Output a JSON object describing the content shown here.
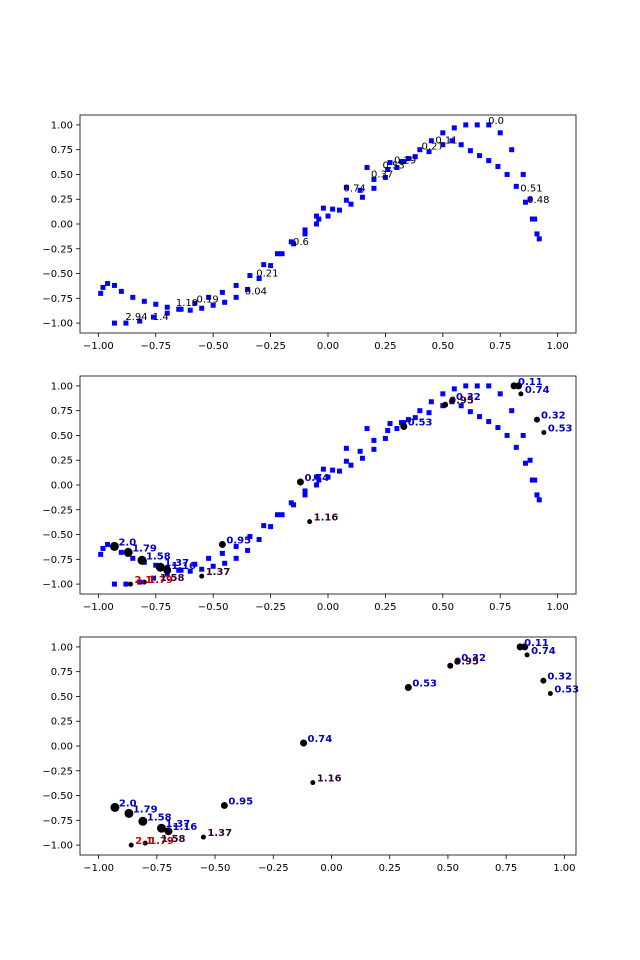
{
  "chart_data": [
    {
      "type": "scatter",
      "title": "",
      "xlabel": "",
      "ylabel": "",
      "xlim": [
        -1.08,
        1.08
      ],
      "ylim": [
        -1.1,
        1.1
      ],
      "xticks": [
        "−1.00",
        "−0.75",
        "−0.50",
        "−0.25",
        "0.00",
        "0.25",
        "0.50",
        "0.75",
        "1.00"
      ],
      "xtick_values": [
        -1.0,
        -0.75,
        -0.5,
        -0.25,
        0.0,
        0.25,
        0.5,
        0.75,
        1.0
      ],
      "yticks": [
        "−1.00",
        "−0.75",
        "−0.50",
        "−0.25",
        "0.00",
        "0.25",
        "0.50",
        "0.75",
        "1.00"
      ],
      "ytick_values": [
        -1.0,
        -0.75,
        -0.5,
        -0.25,
        0.0,
        0.25,
        0.5,
        0.75,
        1.0
      ],
      "grid": false,
      "series": [
        {
          "color": "#0000ff",
          "marker": "square",
          "x": [
            -0.99,
            -0.98,
            -0.96,
            -0.93,
            -0.9,
            -0.85,
            -0.8,
            -0.75,
            -0.7,
            -0.65,
            -0.6,
            -0.55,
            -0.5,
            -0.45,
            -0.4,
            -0.35,
            -0.3,
            -0.25,
            -0.2,
            -0.15,
            -0.1,
            -0.05,
            0.0,
            0.05,
            0.1,
            0.15,
            0.2,
            0.25,
            0.3,
            0.35,
            0.4,
            0.45,
            0.5,
            0.55,
            0.6,
            0.65,
            0.7,
            0.75,
            0.8,
            0.85,
            0.88,
            0.9,
            0.92,
            -0.93,
            -0.88,
            -0.82,
            -0.76,
            -0.7,
            -0.64,
            -0.58,
            -0.52,
            -0.46,
            -0.4,
            -0.34,
            -0.28,
            -0.22,
            -0.16,
            -0.1,
            -0.04,
            0.02,
            0.08,
            0.14,
            0.2,
            0.26,
            0.32,
            0.38,
            0.44,
            0.5,
            0.54,
            0.58,
            0.62,
            0.66,
            0.7,
            0.74,
            0.78,
            0.82,
            0.86,
            0.89,
            0.91,
            -0.05,
            -0.02,
            0.08,
            0.17,
            0.27,
            0.33
          ],
          "y": [
            -0.7,
            -0.64,
            -0.6,
            -0.62,
            -0.68,
            -0.74,
            -0.78,
            -0.81,
            -0.84,
            -0.86,
            -0.87,
            -0.85,
            -0.82,
            -0.79,
            -0.74,
            -0.66,
            -0.55,
            -0.42,
            -0.3,
            -0.2,
            -0.1,
            0.0,
            0.08,
            0.14,
            0.2,
            0.27,
            0.36,
            0.47,
            0.57,
            0.66,
            0.75,
            0.84,
            0.92,
            0.97,
            1.0,
            1.0,
            1.0,
            0.92,
            0.75,
            0.5,
            0.25,
            0.05,
            -0.15,
            -1.0,
            -1.0,
            -0.98,
            -0.94,
            -0.9,
            -0.86,
            -0.8,
            -0.74,
            -0.69,
            -0.62,
            -0.52,
            -0.41,
            -0.3,
            -0.18,
            -0.06,
            0.05,
            0.15,
            0.24,
            0.34,
            0.45,
            0.55,
            0.63,
            0.68,
            0.73,
            0.8,
            0.84,
            0.8,
            0.74,
            0.69,
            0.64,
            0.58,
            0.5,
            0.38,
            0.22,
            0.05,
            -0.1,
            0.08,
            0.16,
            0.37,
            0.57,
            0.62,
            0.63
          ]
        }
      ],
      "annotations": [
        {
          "text": "0.0",
          "x": 0.68,
          "y": 1.0,
          "color": "#000000"
        },
        {
          "text": "0.11",
          "x": 0.45,
          "y": 0.8,
          "color": "#000000"
        },
        {
          "text": "0.27",
          "x": 0.39,
          "y": 0.74,
          "color": "#000000"
        },
        {
          "text": "0.53",
          "x": 0.22,
          "y": 0.55,
          "color": "#000000"
        },
        {
          "text": "0.29",
          "x": 0.27,
          "y": 0.6,
          "color": "#000000"
        },
        {
          "text": "0.37",
          "x": 0.17,
          "y": 0.46,
          "color": "#000000"
        },
        {
          "text": "0.74",
          "x": 0.05,
          "y": 0.32,
          "color": "#000000"
        },
        {
          "text": "0.51",
          "x": 0.82,
          "y": 0.32,
          "color": "#000000"
        },
        {
          "text": "0.48",
          "x": 0.85,
          "y": 0.2,
          "color": "#000000"
        },
        {
          "text": "0.6",
          "x": -0.17,
          "y": -0.22,
          "color": "#000000"
        },
        {
          "text": "0.21",
          "x": -0.33,
          "y": -0.54,
          "color": "#000000"
        },
        {
          "text": "0.04",
          "x": -0.38,
          "y": -0.72,
          "color": "#000000"
        },
        {
          "text": "0.19",
          "x": -0.59,
          "y": -0.8,
          "color": "#000000"
        },
        {
          "text": "1.19",
          "x": -0.68,
          "y": -0.84,
          "color": "#000000"
        },
        {
          "text": "1.4",
          "x": -0.78,
          "y": -0.98,
          "color": "#000000"
        },
        {
          "text": "2.94",
          "x": -0.9,
          "y": -0.98,
          "color": "#000000"
        }
      ]
    },
    {
      "type": "scatter",
      "title": "",
      "xlabel": "",
      "ylabel": "",
      "xlim": [
        -1.08,
        1.08
      ],
      "ylim": [
        -1.1,
        1.1
      ],
      "xticks": [
        "−1.00",
        "−0.75",
        "−0.50",
        "−0.25",
        "0.00",
        "0.25",
        "0.50",
        "0.75",
        "1.00"
      ],
      "xtick_values": [
        -1.0,
        -0.75,
        -0.5,
        -0.25,
        0.0,
        0.25,
        0.5,
        0.75,
        1.0
      ],
      "yticks": [
        "−1.00",
        "−0.75",
        "−0.50",
        "−0.25",
        "0.00",
        "0.25",
        "0.50",
        "0.75",
        "1.00"
      ],
      "ytick_values": [
        -1.0,
        -0.75,
        -0.5,
        -0.25,
        0.0,
        0.25,
        0.5,
        0.75,
        1.0
      ],
      "grid": false,
      "series": [
        {
          "color": "#0000ff",
          "marker": "square",
          "x": [
            -0.99,
            -0.98,
            -0.96,
            -0.93,
            -0.9,
            -0.85,
            -0.8,
            -0.75,
            -0.7,
            -0.65,
            -0.6,
            -0.55,
            -0.5,
            -0.45,
            -0.4,
            -0.35,
            -0.3,
            -0.25,
            -0.2,
            -0.15,
            -0.1,
            -0.05,
            0.0,
            0.05,
            0.1,
            0.15,
            0.2,
            0.25,
            0.3,
            0.35,
            0.4,
            0.45,
            0.5,
            0.55,
            0.6,
            0.65,
            0.7,
            0.75,
            0.8,
            0.85,
            0.88,
            0.9,
            0.92,
            -0.93,
            -0.88,
            -0.82,
            -0.76,
            -0.7,
            -0.64,
            -0.58,
            -0.52,
            -0.46,
            -0.4,
            -0.34,
            -0.28,
            -0.22,
            -0.16,
            -0.1,
            -0.04,
            0.02,
            0.08,
            0.14,
            0.2,
            0.26,
            0.32,
            0.38,
            0.44,
            0.5,
            0.54,
            0.58,
            0.62,
            0.66,
            0.7,
            0.74,
            0.78,
            0.82,
            0.86,
            0.89,
            0.91,
            -0.05,
            -0.02,
            0.08,
            0.17,
            0.27,
            0.33
          ],
          "y": [
            -0.7,
            -0.64,
            -0.6,
            -0.62,
            -0.68,
            -0.74,
            -0.78,
            -0.81,
            -0.84,
            -0.86,
            -0.87,
            -0.85,
            -0.82,
            -0.79,
            -0.74,
            -0.66,
            -0.55,
            -0.42,
            -0.3,
            -0.2,
            -0.1,
            0.0,
            0.08,
            0.14,
            0.2,
            0.27,
            0.36,
            0.47,
            0.57,
            0.66,
            0.75,
            0.84,
            0.92,
            0.97,
            1.0,
            1.0,
            1.0,
            0.92,
            0.75,
            0.5,
            0.25,
            0.05,
            -0.15,
            -1.0,
            -1.0,
            -0.98,
            -0.94,
            -0.9,
            -0.86,
            -0.8,
            -0.74,
            -0.69,
            -0.62,
            -0.52,
            -0.41,
            -0.3,
            -0.18,
            -0.06,
            0.05,
            0.15,
            0.24,
            0.34,
            0.45,
            0.55,
            0.63,
            0.68,
            0.73,
            0.8,
            0.84,
            0.8,
            0.74,
            0.69,
            0.64,
            0.58,
            0.5,
            0.38,
            0.22,
            0.05,
            -0.1,
            0.08,
            0.16,
            0.37,
            0.57,
            0.62,
            0.63
          ]
        },
        {
          "color": "#000000",
          "marker": "circle",
          "x": [
            0.81,
            0.83,
            0.84,
            0.91,
            0.94,
            0.54,
            0.51,
            0.33,
            -0.12,
            -0.08,
            -0.46,
            -0.93,
            -0.87,
            -0.81,
            -0.73,
            -0.7,
            -0.55,
            -0.8,
            -0.86
          ],
          "y": [
            1.0,
            1.0,
            0.92,
            0.66,
            0.53,
            0.85,
            0.81,
            0.59,
            0.03,
            -0.37,
            -0.6,
            -0.62,
            -0.68,
            -0.76,
            -0.83,
            -0.86,
            -0.92,
            -0.98,
            -1.0
          ],
          "sizes": [
            7,
            7,
            5,
            6,
            5,
            6,
            6,
            7,
            7,
            5,
            7,
            9,
            9,
            9,
            9,
            8,
            5,
            5,
            5
          ]
        }
      ],
      "annotations": [
        {
          "text": "0.11",
          "x": 0.81,
          "y": 1.0,
          "color": "#0000c8"
        },
        {
          "text": "0.74",
          "x": 0.84,
          "y": 0.92,
          "color": "#0000c8"
        },
        {
          "text": "0.32",
          "x": 0.91,
          "y": 0.66,
          "color": "#0000c8"
        },
        {
          "text": "0.53",
          "x": 0.94,
          "y": 0.53,
          "color": "#0000c8"
        },
        {
          "text": "0.32",
          "x": 0.54,
          "y": 0.85,
          "color": "#0000c8"
        },
        {
          "text": "0.95",
          "x": 0.51,
          "y": 0.81,
          "color": "#330033"
        },
        {
          "text": "0.53",
          "x": 0.33,
          "y": 0.59,
          "color": "#0000c8"
        },
        {
          "text": "0.74",
          "x": -0.12,
          "y": 0.03,
          "color": "#0000c8"
        },
        {
          "text": "1.16",
          "x": -0.08,
          "y": -0.37,
          "color": "#330033"
        },
        {
          "text": "0.95",
          "x": -0.46,
          "y": -0.6,
          "color": "#0000c8"
        },
        {
          "text": "2.0",
          "x": -0.93,
          "y": -0.62,
          "color": "#0000c8"
        },
        {
          "text": "1.79",
          "x": -0.87,
          "y": -0.68,
          "color": "#0000c8"
        },
        {
          "text": "1.58",
          "x": -0.81,
          "y": -0.76,
          "color": "#0000c8"
        },
        {
          "text": "1.37",
          "x": -0.73,
          "y": -0.83,
          "color": "#0000c8"
        },
        {
          "text": "1.16",
          "x": -0.7,
          "y": -0.86,
          "color": "#0000c8"
        },
        {
          "text": "1.37",
          "x": -0.55,
          "y": -0.92,
          "color": "#330033"
        },
        {
          "text": "2.1",
          "x": -0.86,
          "y": -1.0,
          "color": "#cc0000"
        },
        {
          "text": "1.79",
          "x": -0.8,
          "y": -1.0,
          "color": "#cc0000"
        },
        {
          "text": "1.58",
          "x": -0.75,
          "y": -0.98,
          "color": "#330033"
        }
      ]
    },
    {
      "type": "scatter",
      "title": "",
      "xlabel": "",
      "ylabel": "",
      "xlim": [
        -1.08,
        1.05
      ],
      "ylim": [
        -1.1,
        1.1
      ],
      "xticks": [
        "−1.00",
        "−0.75",
        "−0.50",
        "−0.25",
        "0.00",
        "0.25",
        "0.50",
        "0.75",
        "1.00"
      ],
      "xtick_values": [
        -1.0,
        -0.75,
        -0.5,
        -0.25,
        0.0,
        0.25,
        0.5,
        0.75,
        1.0
      ],
      "yticks": [
        "−1.00",
        "−0.75",
        "−0.50",
        "−0.25",
        "0.00",
        "0.25",
        "0.50",
        "0.75",
        "1.00"
      ],
      "ytick_values": [
        -1.0,
        -0.75,
        -0.5,
        -0.25,
        0.0,
        0.25,
        0.5,
        0.75,
        1.0
      ],
      "grid": false,
      "series": [
        {
          "color": "#000000",
          "marker": "circle",
          "x": [
            0.81,
            0.83,
            0.84,
            0.91,
            0.94,
            0.54,
            0.51,
            0.33,
            -0.12,
            -0.08,
            -0.46,
            -0.93,
            -0.87,
            -0.81,
            -0.73,
            -0.7,
            -0.55,
            -0.8,
            -0.86
          ],
          "y": [
            1.0,
            1.0,
            0.92,
            0.66,
            0.53,
            0.85,
            0.81,
            0.59,
            0.03,
            -0.37,
            -0.6,
            -0.62,
            -0.68,
            -0.76,
            -0.83,
            -0.86,
            -0.92,
            -0.98,
            -1.0
          ],
          "sizes": [
            7,
            7,
            5,
            6,
            5,
            6,
            6,
            7,
            7,
            5,
            7,
            9,
            9,
            9,
            9,
            8,
            5,
            5,
            5
          ]
        }
      ],
      "annotations": [
        {
          "text": "0.11",
          "x": 0.81,
          "y": 1.0,
          "color": "#0000c8"
        },
        {
          "text": "0.74",
          "x": 0.84,
          "y": 0.92,
          "color": "#0000c8"
        },
        {
          "text": "0.32",
          "x": 0.91,
          "y": 0.66,
          "color": "#0000c8"
        },
        {
          "text": "0.53",
          "x": 0.94,
          "y": 0.53,
          "color": "#0000c8"
        },
        {
          "text": "0.32",
          "x": 0.54,
          "y": 0.85,
          "color": "#0000c8"
        },
        {
          "text": "0.95",
          "x": 0.51,
          "y": 0.81,
          "color": "#330033"
        },
        {
          "text": "0.53",
          "x": 0.33,
          "y": 0.59,
          "color": "#0000c8"
        },
        {
          "text": "0.74",
          "x": -0.12,
          "y": 0.03,
          "color": "#0000c8"
        },
        {
          "text": "1.16",
          "x": -0.08,
          "y": -0.37,
          "color": "#330033"
        },
        {
          "text": "0.95",
          "x": -0.46,
          "y": -0.6,
          "color": "#0000c8"
        },
        {
          "text": "2.0",
          "x": -0.93,
          "y": -0.62,
          "color": "#0000c8"
        },
        {
          "text": "1.79",
          "x": -0.87,
          "y": -0.68,
          "color": "#0000c8"
        },
        {
          "text": "1.58",
          "x": -0.81,
          "y": -0.76,
          "color": "#0000c8"
        },
        {
          "text": "1.37",
          "x": -0.73,
          "y": -0.83,
          "color": "#0000c8"
        },
        {
          "text": "1.16",
          "x": -0.7,
          "y": -0.86,
          "color": "#0000c8"
        },
        {
          "text": "1.37",
          "x": -0.55,
          "y": -0.92,
          "color": "#330033"
        },
        {
          "text": "2.1",
          "x": -0.86,
          "y": -1.0,
          "color": "#cc0000"
        },
        {
          "text": "1.79",
          "x": -0.8,
          "y": -1.0,
          "color": "#cc0000"
        },
        {
          "text": "1.58",
          "x": -0.75,
          "y": -0.98,
          "color": "#330033"
        }
      ]
    }
  ]
}
